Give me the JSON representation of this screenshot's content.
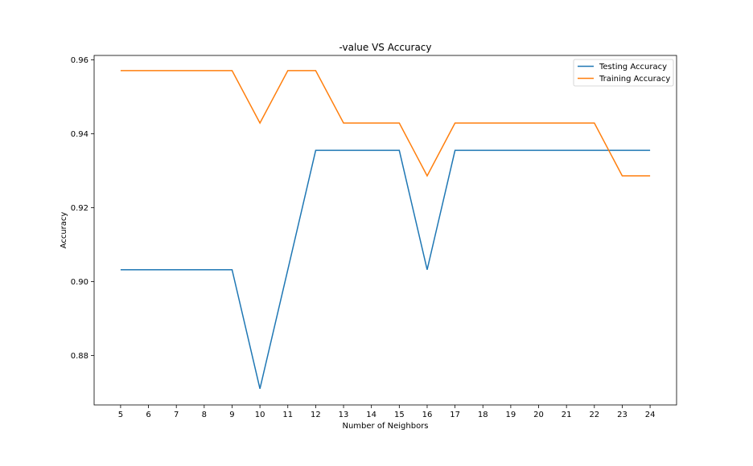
{
  "chart_data": {
    "type": "line",
    "title": "-value VS Accuracy",
    "xlabel": "Number of Neighbors",
    "ylabel": "Accuracy",
    "x": [
      5,
      6,
      7,
      8,
      9,
      10,
      11,
      12,
      13,
      14,
      15,
      16,
      17,
      18,
      19,
      20,
      21,
      22,
      23,
      24
    ],
    "xticks": [
      "5",
      "6",
      "7",
      "8",
      "9",
      "10",
      "11",
      "12",
      "13",
      "14",
      "15",
      "16",
      "17",
      "18",
      "19",
      "20",
      "21",
      "22",
      "23",
      "24"
    ],
    "xlim": [
      4.05,
      24.95
    ],
    "ylim": [
      0.8666,
      0.9612
    ],
    "yticks": [
      "0.88",
      "0.90",
      "0.92",
      "0.94",
      "0.96"
    ],
    "grid": false,
    "legend": "top-right",
    "series": [
      {
        "name": "Testing Accuracy",
        "color": "#1f77b4",
        "values": [
          0.9032,
          0.9032,
          0.9032,
          0.9032,
          0.9032,
          0.871,
          0.9032,
          0.9355,
          0.9355,
          0.9355,
          0.9355,
          0.9032,
          0.9355,
          0.9355,
          0.9355,
          0.9355,
          0.9355,
          0.9355,
          0.9355,
          0.9355
        ]
      },
      {
        "name": "Training Accuracy",
        "color": "#ff7f0e",
        "values": [
          0.9571,
          0.9571,
          0.9571,
          0.9571,
          0.9571,
          0.9429,
          0.9571,
          0.9571,
          0.9429,
          0.9429,
          0.9429,
          0.9286,
          0.9429,
          0.9429,
          0.9429,
          0.9429,
          0.9429,
          0.9429,
          0.9286,
          0.9286
        ]
      }
    ]
  }
}
